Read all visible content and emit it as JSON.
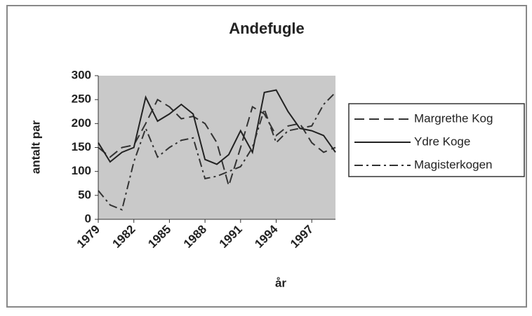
{
  "chart_data": {
    "type": "line",
    "title": "Andefugle",
    "x_label": "år",
    "y_label": "antalt par",
    "x": [
      1979,
      1980,
      1981,
      1982,
      1983,
      1984,
      1985,
      1986,
      1987,
      1988,
      1989,
      1990,
      1991,
      1992,
      1993,
      1994,
      1995,
      1996,
      1997,
      1998,
      1999
    ],
    "series": [
      {
        "name": "Margrethe Kog",
        "color": "#333333",
        "dash": "long",
        "values": [
          150,
          130,
          150,
          155,
          200,
          250,
          235,
          210,
          215,
          200,
          160,
          70,
          150,
          235,
          220,
          175,
          195,
          200,
          160,
          140,
          150
        ]
      },
      {
        "name": "Ydre Koge",
        "color": "#222222",
        "dash": "solid",
        "values": [
          160,
          120,
          140,
          150,
          255,
          205,
          220,
          240,
          220,
          125,
          115,
          135,
          185,
          140,
          265,
          270,
          225,
          190,
          185,
          175,
          140
        ]
      },
      {
        "name": "Magisterkogen",
        "color": "#333333",
        "dash": "dashdot",
        "values": [
          60,
          30,
          20,
          120,
          190,
          130,
          150,
          165,
          170,
          85,
          90,
          100,
          110,
          150,
          230,
          160,
          185,
          190,
          195,
          240,
          265
        ]
      }
    ],
    "xlim": [
      1979,
      1999
    ],
    "xticks": [
      1979,
      1982,
      1985,
      1988,
      1991,
      1994,
      1997
    ],
    "ylim": [
      0,
      300
    ],
    "yticks": [
      0,
      50,
      100,
      150,
      200,
      250,
      300
    ],
    "legend": "right",
    "background": "#c9c9c9"
  }
}
